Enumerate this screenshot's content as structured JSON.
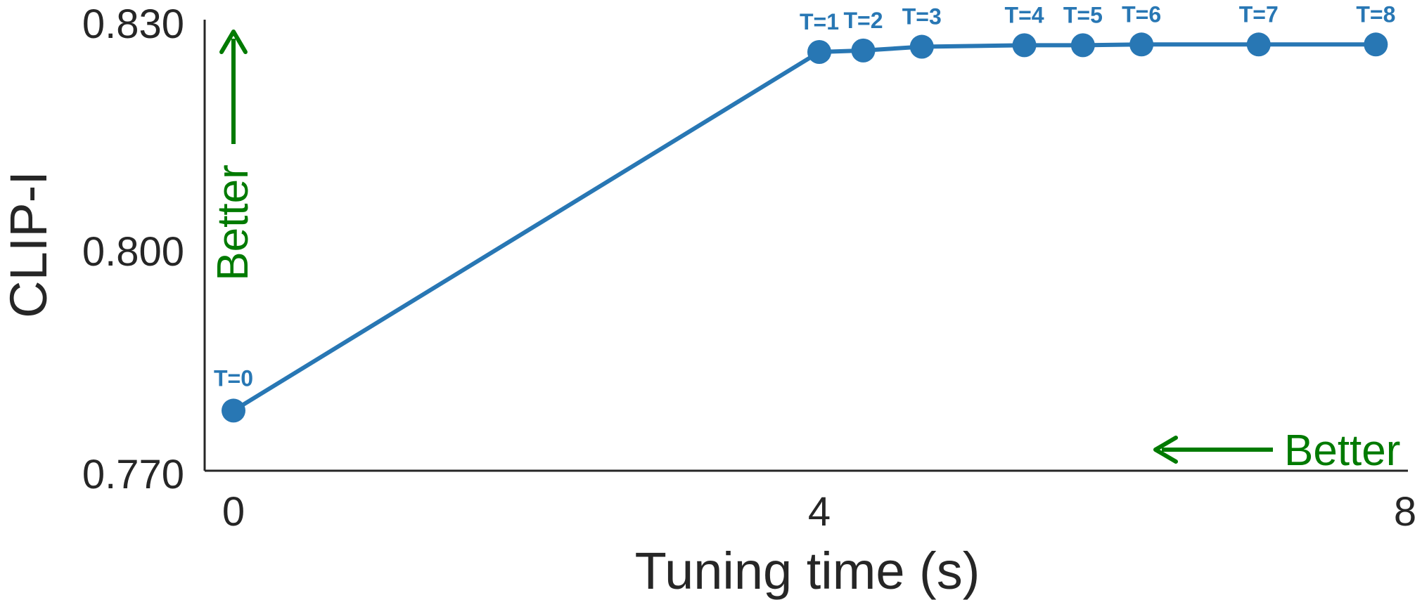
{
  "chart_data": {
    "type": "line",
    "title": "",
    "xlabel": "Tuning time (s)",
    "ylabel": "CLIP-I",
    "xlim": [
      -0.2,
      8
    ],
    "ylim": [
      0.77,
      0.83
    ],
    "xticks": [
      0,
      4,
      8
    ],
    "xtick_labels": [
      "0",
      "4",
      "8"
    ],
    "yticks": [
      0.77,
      0.8,
      0.83
    ],
    "ytick_labels": [
      "0.770",
      "0.800",
      "0.830"
    ],
    "grid": false,
    "legend": "none",
    "series": [
      {
        "color": "#2877b4",
        "points": [
          {
            "label": "T=0",
            "x": 0.0,
            "y": 0.778
          },
          {
            "label": "T=1",
            "x": 4.0,
            "y": 0.8257
          },
          {
            "label": "T=2",
            "x": 4.3,
            "y": 0.8259
          },
          {
            "label": "T=3",
            "x": 4.7,
            "y": 0.8264
          },
          {
            "label": "T=4",
            "x": 5.4,
            "y": 0.8266
          },
          {
            "label": "T=5",
            "x": 5.8,
            "y": 0.8266
          },
          {
            "label": "T=6",
            "x": 6.2,
            "y": 0.8267
          },
          {
            "label": "T=7",
            "x": 7.0,
            "y": 0.8267
          },
          {
            "label": "T=8",
            "x": 7.8,
            "y": 0.8267
          }
        ]
      }
    ],
    "annotations": [
      {
        "text": "Better",
        "direction": "up",
        "color": "#007a00"
      },
      {
        "text": "Better",
        "direction": "left",
        "color": "#007a00"
      }
    ]
  }
}
